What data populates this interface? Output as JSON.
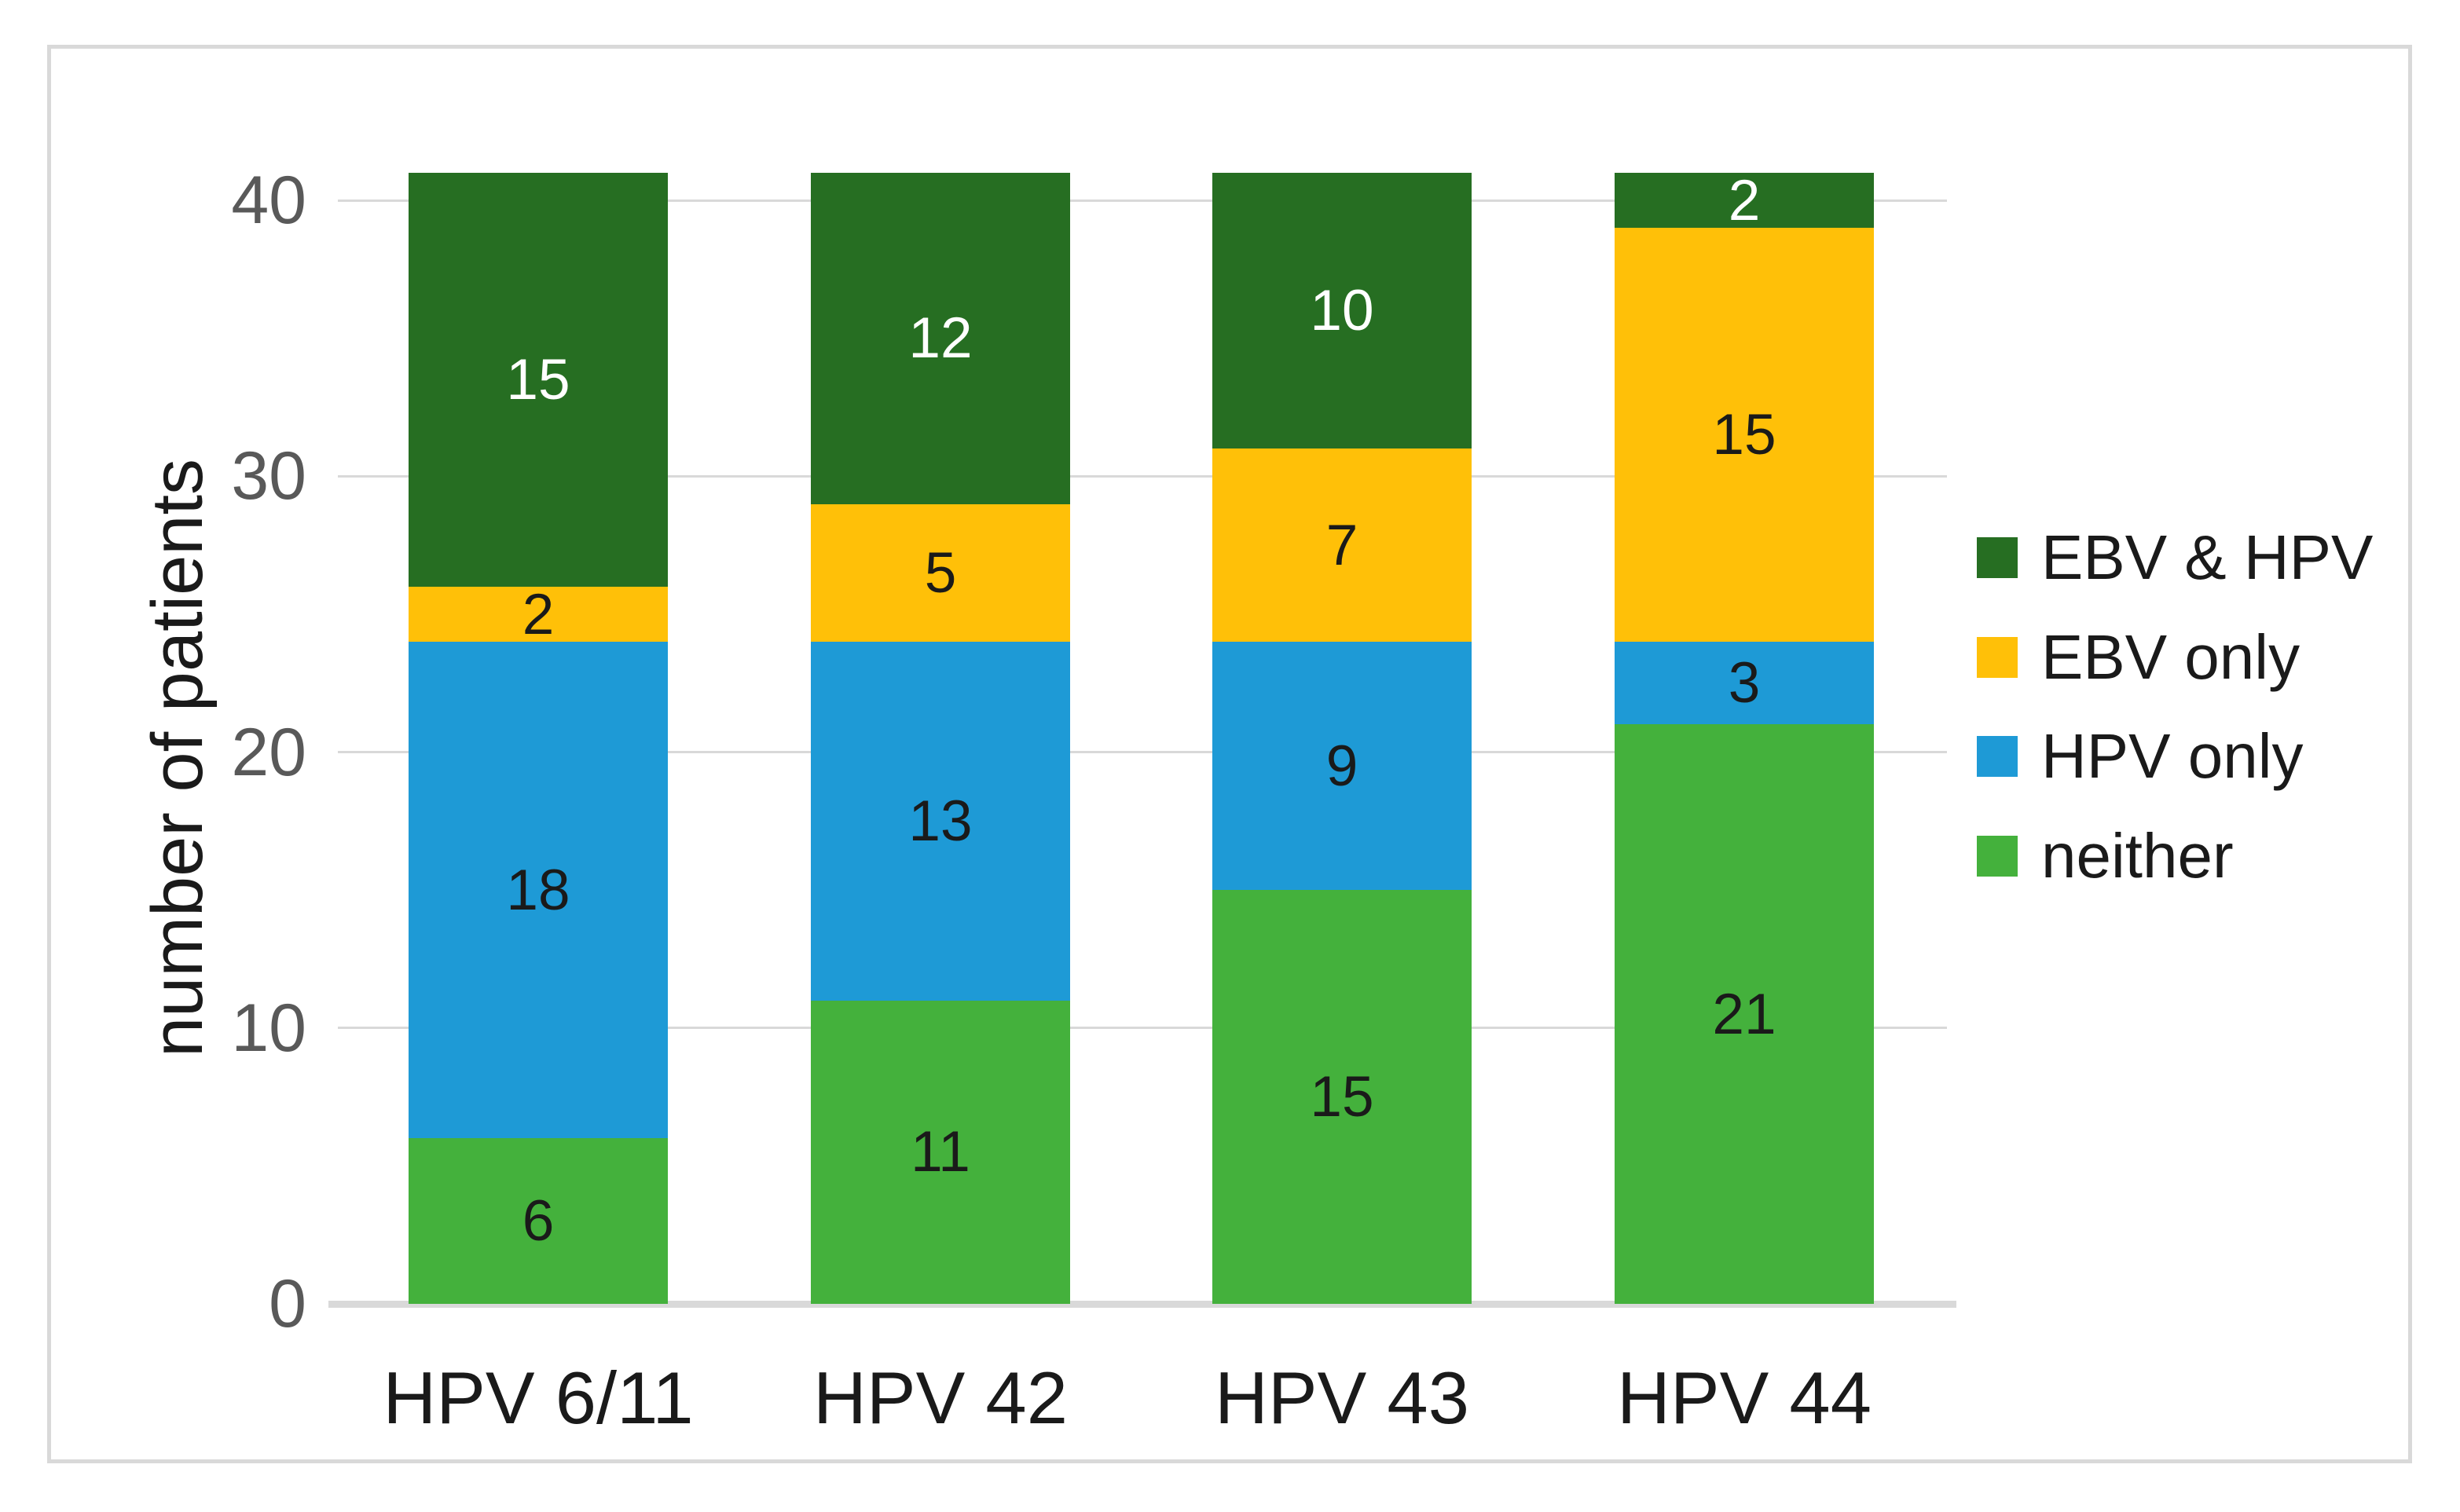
{
  "figure": {
    "background": "#FFFFFF",
    "border_color": "#D9D9D9",
    "gridline_color": "#D9D9D9",
    "tick_label_color": "#595959",
    "axis_text_color": "#1A1A1A"
  },
  "chart_data": {
    "type": "bar",
    "stacked": true,
    "title": "",
    "categories": [
      "HPV 6/11",
      "HPV 42",
      "HPV 43",
      "HPV 44"
    ],
    "series": [
      {
        "name": "EBV & HPV",
        "color": "#266E22",
        "label_color": "#FFFFFF",
        "values": [
          15,
          12,
          10,
          2
        ]
      },
      {
        "name": "EBV only",
        "color": "#FFC008",
        "label_color": "#1A1A1A",
        "values": [
          2,
          5,
          7,
          15
        ]
      },
      {
        "name": "HPV only",
        "color": "#1E9AD6",
        "label_color": "#1A1A1A",
        "values": [
          18,
          13,
          9,
          3
        ]
      },
      {
        "name": "neither",
        "color": "#44B13C",
        "label_color": "#1A1A1A",
        "values": [
          6,
          11,
          15,
          21
        ]
      }
    ],
    "stack_order_bottom_to_top": [
      "neither",
      "HPV only",
      "EBV only",
      "EBV & HPV"
    ],
    "column_totals": [
      41,
      41,
      41,
      41
    ],
    "xlabel": "",
    "ylabel": "number of patients",
    "yticks": [
      0,
      10,
      20,
      30,
      40
    ],
    "ylim": [
      0,
      41
    ],
    "grid": true,
    "data_labels": true,
    "legend_position": "right"
  }
}
